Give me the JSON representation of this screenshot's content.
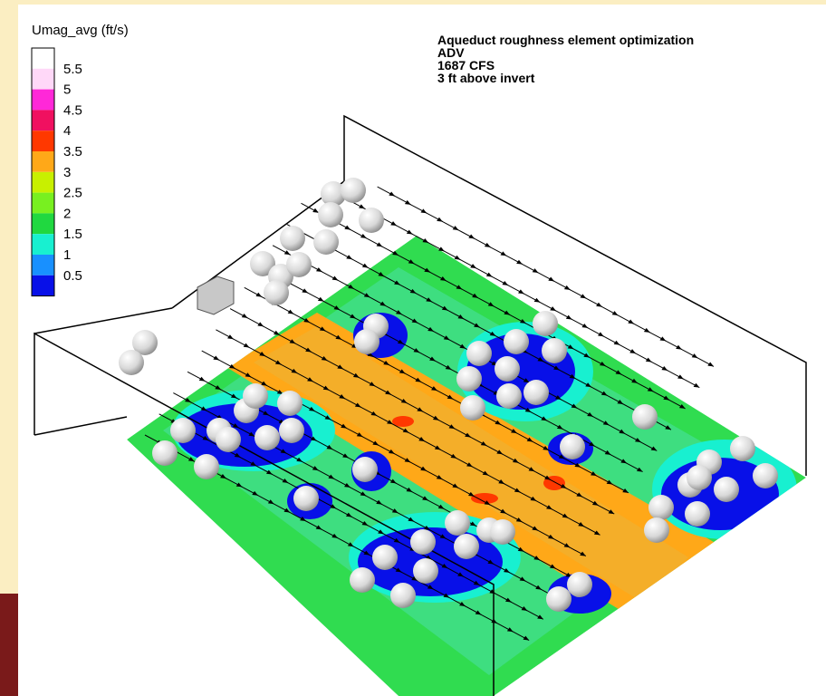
{
  "legend": {
    "title": "Umag_avg (ft/s)",
    "entries": [
      {
        "label": "5.5",
        "color": "#ffd8f8"
      },
      {
        "label": "5",
        "color": "#ff28d8"
      },
      {
        "label": "4.5",
        "color": "#f01060"
      },
      {
        "label": "4",
        "color": "#ff3800"
      },
      {
        "label": "3.5",
        "color": "#ffa818"
      },
      {
        "label": "3",
        "color": "#c8f000"
      },
      {
        "label": "2.5",
        "color": "#78f020"
      },
      {
        "label": "2",
        "color": "#20d840"
      },
      {
        "label": "1.5",
        "color": "#18f0d0"
      },
      {
        "label": "1",
        "color": "#1890ff"
      },
      {
        "label": "0.5",
        "color": "#0810e8"
      }
    ]
  },
  "annotation": [
    "Aqueduct roughness element optimization",
    "ADV",
    "1687 CFS",
    "3 ft above invert"
  ]
}
